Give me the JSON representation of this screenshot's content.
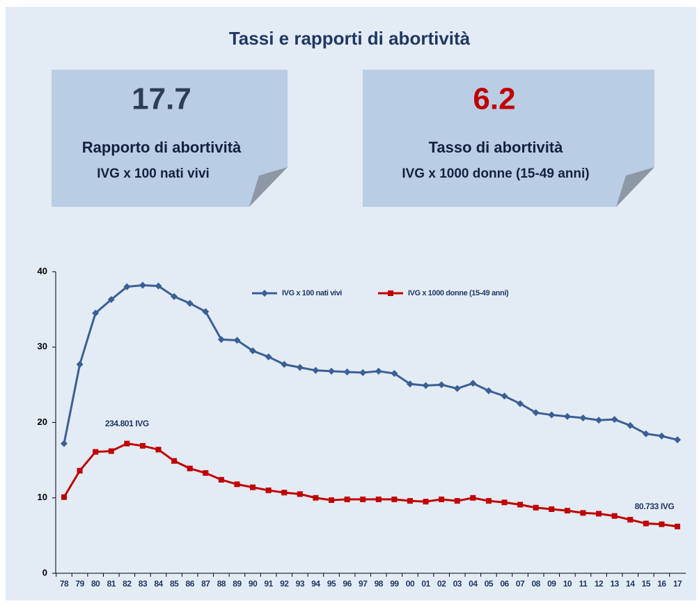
{
  "title": "Tassi e rapporti di abortività",
  "cards": [
    {
      "value": "17.7",
      "title": "Rapporto di abortività",
      "subtitle": "IVG x 100 nati vivi"
    },
    {
      "value": "6.2",
      "title": "Tasso di abortività",
      "subtitle": "IVG x 1000 donne (15-49 anni)"
    }
  ],
  "chart_data": {
    "type": "line",
    "categories": [
      "78",
      "79",
      "80",
      "81",
      "82",
      "83",
      "84",
      "85",
      "86",
      "87",
      "88",
      "89",
      "90",
      "91",
      "92",
      "93",
      "94",
      "95",
      "96",
      "97",
      "98",
      "99",
      "00",
      "01",
      "02",
      "03",
      "04",
      "05",
      "06",
      "07",
      "08",
      "09",
      "10",
      "11",
      "12",
      "13",
      "14",
      "15",
      "16",
      "17"
    ],
    "series": [
      {
        "name": "IVG x 100 nati vivi",
        "color": "#3a5f96",
        "marker": "diamond",
        "values": [
          17.2,
          27.7,
          34.5,
          36.3,
          38.0,
          38.2,
          38.1,
          36.7,
          35.8,
          34.7,
          31.0,
          30.9,
          29.5,
          28.7,
          27.7,
          27.3,
          26.9,
          26.8,
          26.7,
          26.6,
          26.8,
          26.5,
          25.1,
          24.9,
          25.0,
          24.5,
          25.2,
          24.2,
          23.5,
          22.5,
          21.3,
          21.0,
          20.8,
          20.6,
          20.3,
          20.4,
          19.6,
          18.5,
          18.2,
          17.7
        ]
      },
      {
        "name": "IVG x 1000 donne (15-49 anni)",
        "color": "#c00000",
        "marker": "square",
        "values": [
          10.1,
          13.6,
          16.1,
          16.2,
          17.2,
          16.9,
          16.4,
          14.9,
          13.9,
          13.3,
          12.4,
          11.8,
          11.4,
          11.0,
          10.7,
          10.5,
          10.0,
          9.7,
          9.8,
          9.8,
          9.8,
          9.8,
          9.6,
          9.5,
          9.8,
          9.6,
          10.0,
          9.6,
          9.4,
          9.1,
          8.7,
          8.5,
          8.3,
          8.0,
          7.9,
          7.6,
          7.1,
          6.6,
          6.5,
          6.2
        ]
      }
    ],
    "ylim": [
      0,
      40
    ],
    "yticks": [
      0,
      10,
      20,
      30,
      40
    ],
    "legend": "top",
    "annotations": [
      {
        "text": "234.801 IVG",
        "category": 4,
        "series": 1
      },
      {
        "text": "80.733 IVG",
        "category": 39,
        "series": 1
      }
    ]
  }
}
